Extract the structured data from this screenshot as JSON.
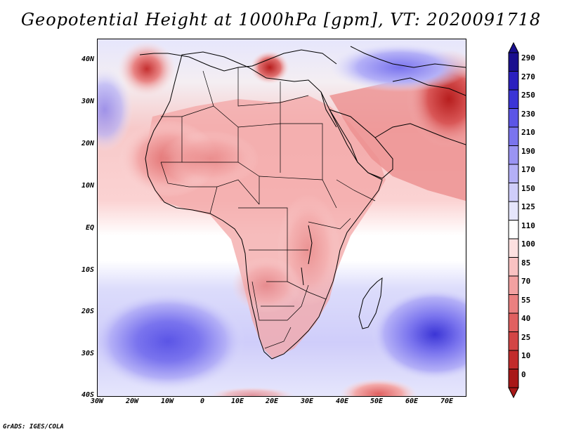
{
  "title": "Geopotential Height at 1000hPa [gpm], VT: 2020091718",
  "credit": "GrADS: IGES/COLA",
  "map": {
    "region": "Africa",
    "variable": "Geopotential Height",
    "level": "1000hPa",
    "units": "gpm",
    "valid_time": "2020091718",
    "lat_labels": [
      "40N",
      "30N",
      "20N",
      "10N",
      "EQ",
      "10S",
      "20S",
      "30S",
      "40S"
    ],
    "lon_labels": [
      "30W",
      "20W",
      "10W",
      "0",
      "10E",
      "20E",
      "30E",
      "40E",
      "50E",
      "60E",
      "70E"
    ],
    "lat_range": [
      -40,
      45
    ],
    "lon_range": [
      -30,
      75
    ]
  },
  "colorbar": {
    "levels": [
      "290",
      "270",
      "250",
      "230",
      "210",
      "190",
      "170",
      "150",
      "125",
      "110",
      "100",
      "85",
      "70",
      "55",
      "40",
      "25",
      "10",
      "0"
    ],
    "colors": [
      "#1a0f8f",
      "#2b1fbf",
      "#3b35d6",
      "#5b55e6",
      "#7a74ee",
      "#9a94f3",
      "#b4b0f7",
      "#cfcdfa",
      "#e6e6fc",
      "#ffffff",
      "#fde0e0",
      "#f9c2c2",
      "#f2a1a1",
      "#ea8080",
      "#e06060",
      "#d34545",
      "#c22b2b",
      "#a81818"
    ]
  }
}
